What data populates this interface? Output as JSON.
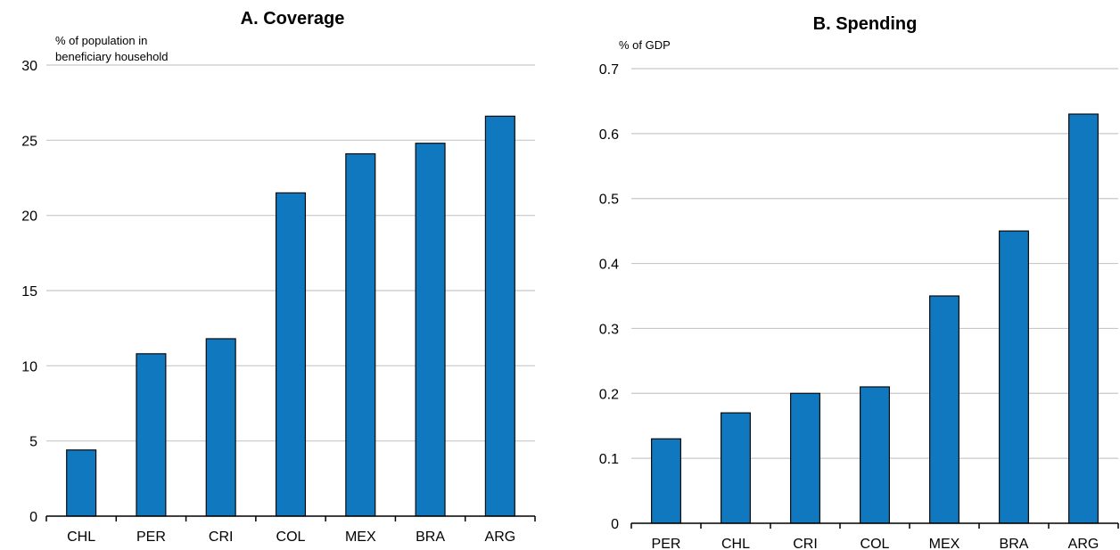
{
  "chart_data": [
    {
      "type": "bar",
      "title": "A. Coverage",
      "ylabel": "% of population in beneficiary household",
      "ylabel_lines": [
        "% of population in",
        "beneficiary household"
      ],
      "categories": [
        "CHL",
        "PER",
        "CRI",
        "COL",
        "MEX",
        "BRA",
        "ARG"
      ],
      "values": [
        4.4,
        10.8,
        11.8,
        21.5,
        24.1,
        24.8,
        26.6
      ],
      "ylim": [
        0,
        30
      ],
      "yticks": [
        0,
        5,
        10,
        15,
        20,
        25,
        30
      ],
      "ytick_labels": [
        "0",
        "5",
        "10",
        "15",
        "20",
        "25",
        "30"
      ],
      "grid": true,
      "bar_color": "#0f78bf"
    },
    {
      "type": "bar",
      "title": "B. Spending",
      "ylabel": "% of GDP",
      "ylabel_lines": [
        "% of GDP"
      ],
      "categories": [
        "PER",
        "CHL",
        "CRI",
        "COL",
        "MEX",
        "BRA",
        "ARG"
      ],
      "values": [
        0.13,
        0.17,
        0.2,
        0.21,
        0.35,
        0.45,
        0.63
      ],
      "ylim": [
        0,
        0.7
      ],
      "yticks": [
        0,
        0.1,
        0.2,
        0.3,
        0.4,
        0.5,
        0.6,
        0.7
      ],
      "ytick_labels": [
        "0",
        "0.1",
        "0.2",
        "0.3",
        "0.4",
        "0.5",
        "0.6",
        "0.7"
      ],
      "grid": true,
      "bar_color": "#0f78bf"
    }
  ]
}
